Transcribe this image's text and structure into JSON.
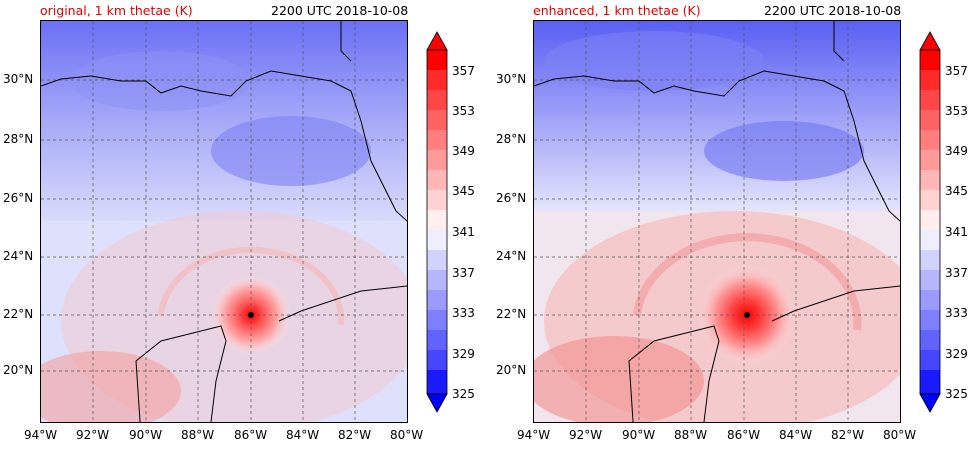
{
  "panels": [
    {
      "title_left": "original, 1 km thetae (K)",
      "title_right": "2200 UTC 2018-10-08",
      "lon_ticks": [
        "94°W",
        "92°W",
        "90°W",
        "88°W",
        "86°W",
        "84°W",
        "82°W",
        "80°W"
      ],
      "lat_ticks": [
        "30°N",
        "28°N",
        "26°N",
        "24°N",
        "22°N",
        "20°N"
      ],
      "colorbar_labels": [
        "357",
        "353",
        "349",
        "345",
        "341",
        "337",
        "333",
        "329",
        "325"
      ],
      "storm_center": {
        "lat": 21.9,
        "lon": -86.0
      }
    },
    {
      "title_left": "enhanced, 1 km thetae (K)",
      "title_right": "2200 UTC 2018-10-08",
      "lon_ticks": [
        "94°W",
        "92°W",
        "90°W",
        "88°W",
        "86°W",
        "84°W",
        "82°W",
        "80°W"
      ],
      "lat_ticks": [
        "30°N",
        "28°N",
        "26°N",
        "24°N",
        "22°N",
        "20°N"
      ],
      "colorbar_labels": [
        "357",
        "353",
        "349",
        "345",
        "341",
        "337",
        "333",
        "329",
        "325"
      ],
      "storm_center": {
        "lat": 21.9,
        "lon": -86.2
      }
    }
  ],
  "colors": {
    "title_red": "#e00000",
    "warm_max": "#ff0000",
    "cold_min": "#0000ff",
    "storm_marker": "#000000"
  }
}
